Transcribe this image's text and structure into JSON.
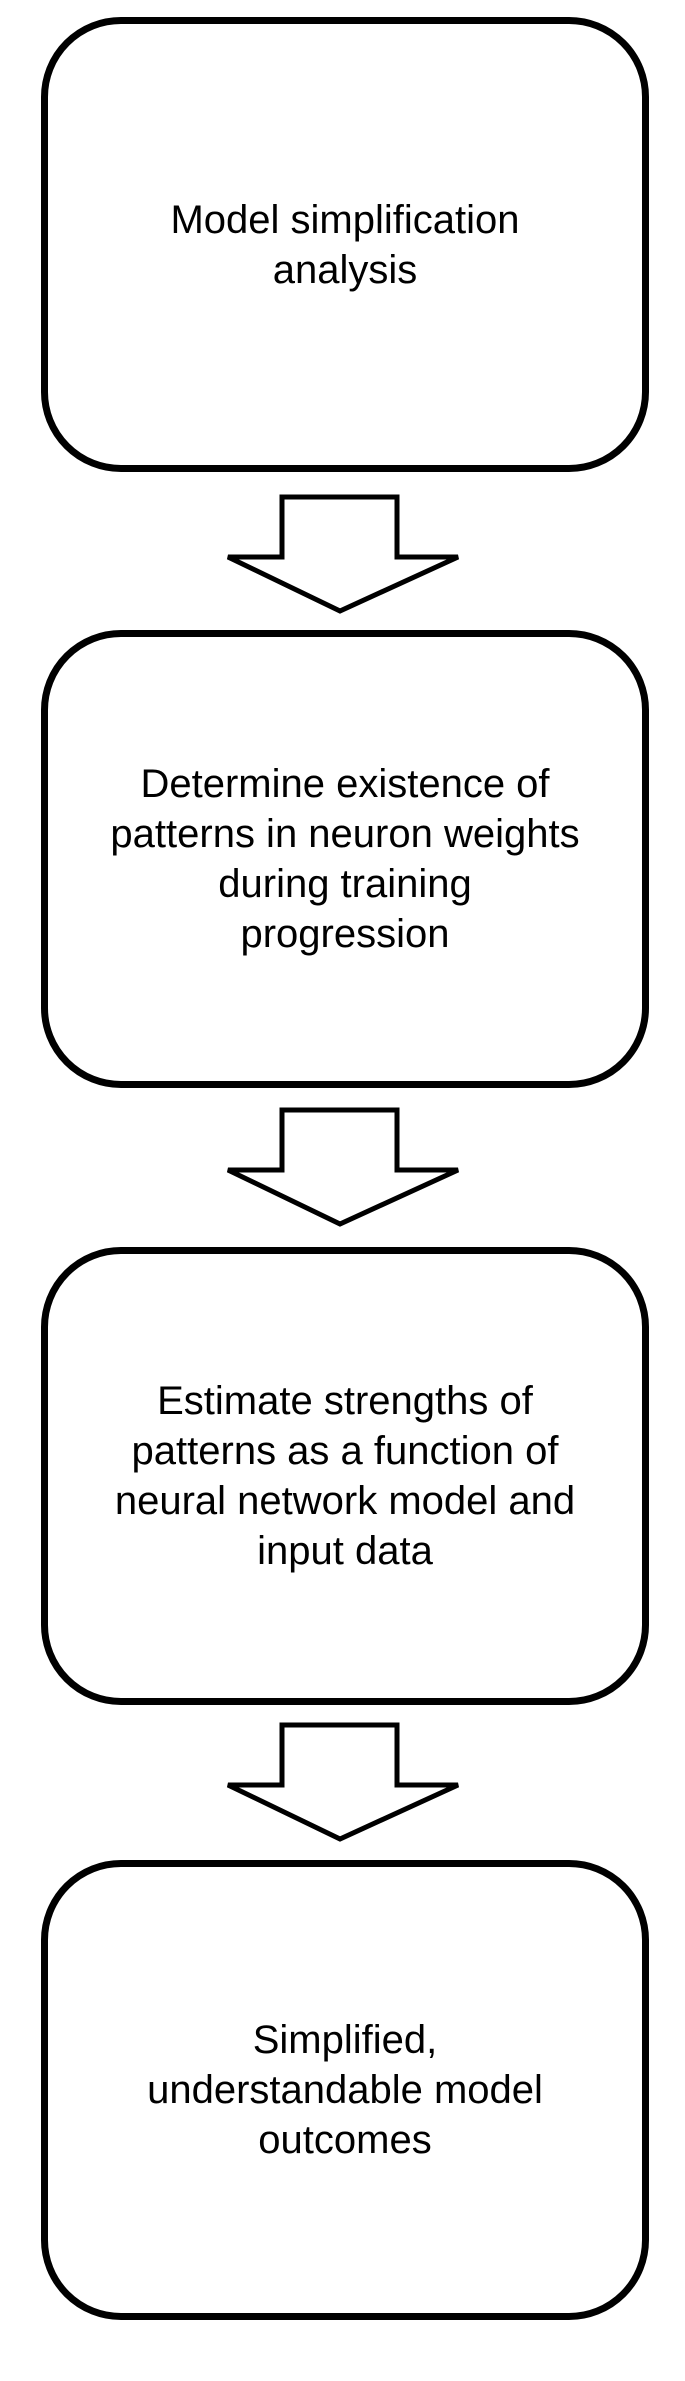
{
  "diagram": {
    "steps": [
      {
        "text": "Model simplification analysis"
      },
      {
        "text": "Determine existence of patterns in neuron weights during training progression"
      },
      {
        "text": "Estimate strengths of patterns as a function of neural network model and input data"
      },
      {
        "text": "Simplified, understandable model outcomes"
      }
    ],
    "connectors": [
      "down-arrow",
      "down-arrow",
      "down-arrow"
    ],
    "colors": {
      "stroke": "#000000",
      "fill": "#ffffff",
      "text": "#000000"
    }
  }
}
